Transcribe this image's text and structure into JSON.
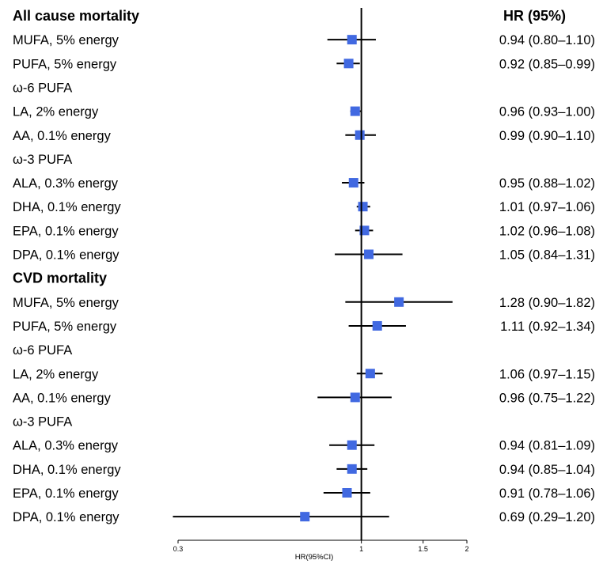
{
  "chart_data": {
    "type": "forest",
    "header_hr": "HR (95%)",
    "xlabel": "HR(95%CI)",
    "x_scale": "log",
    "xlim": [
      0.3,
      2
    ],
    "reference_line": 1,
    "x_ticks": [
      {
        "value": 0.3,
        "label": "0.3"
      },
      {
        "value": 1,
        "label": "1"
      },
      {
        "value": 1.5,
        "label": "1.5"
      },
      {
        "value": 2,
        "label": "2"
      }
    ],
    "marker_color": "#4169E1",
    "rows": [
      {
        "kind": "header",
        "label": "All cause mortality"
      },
      {
        "kind": "data",
        "label": "MUFA, 5% energy",
        "hr": 0.94,
        "lo": 0.8,
        "hi": 1.1,
        "text": "0.94 (0.80–1.10)"
      },
      {
        "kind": "data",
        "label": "PUFA, 5% energy",
        "hr": 0.92,
        "lo": 0.85,
        "hi": 0.99,
        "text": "0.92 (0.85–0.99)"
      },
      {
        "kind": "sub",
        "label": "ω-6 PUFA"
      },
      {
        "kind": "data",
        "label": "LA, 2% energy",
        "hr": 0.96,
        "lo": 0.93,
        "hi": 1.0,
        "text": "0.96 (0.93–1.00)"
      },
      {
        "kind": "data",
        "label": "AA, 0.1% energy",
        "hr": 0.99,
        "lo": 0.9,
        "hi": 1.1,
        "text": "0.99 (0.90–1.10)"
      },
      {
        "kind": "sub",
        "label": "ω-3 PUFA"
      },
      {
        "kind": "data",
        "label": "ALA, 0.3% energy",
        "hr": 0.95,
        "lo": 0.88,
        "hi": 1.02,
        "text": "0.95 (0.88–1.02)"
      },
      {
        "kind": "data",
        "label": "DHA, 0.1% energy",
        "hr": 1.01,
        "lo": 0.97,
        "hi": 1.06,
        "text": "1.01 (0.97–1.06)"
      },
      {
        "kind": "data",
        "label": "EPA, 0.1% energy",
        "hr": 1.02,
        "lo": 0.96,
        "hi": 1.08,
        "text": "1.02 (0.96–1.08)"
      },
      {
        "kind": "data",
        "label": "DPA, 0.1% energy",
        "hr": 1.05,
        "lo": 0.84,
        "hi": 1.31,
        "text": "1.05 (0.84–1.31)"
      },
      {
        "kind": "header",
        "label": "CVD mortality"
      },
      {
        "kind": "data",
        "label": "MUFA, 5% energy",
        "hr": 1.28,
        "lo": 0.9,
        "hi": 1.82,
        "text": "1.28 (0.90–1.82)"
      },
      {
        "kind": "data",
        "label": "PUFA, 5% energy",
        "hr": 1.11,
        "lo": 0.92,
        "hi": 1.34,
        "text": "1.11 (0.92–1.34)"
      },
      {
        "kind": "sub",
        "label": "ω-6 PUFA"
      },
      {
        "kind": "data",
        "label": "LA, 2% energy",
        "hr": 1.06,
        "lo": 0.97,
        "hi": 1.15,
        "text": "1.06 (0.97–1.15)"
      },
      {
        "kind": "data",
        "label": "AA, 0.1% energy",
        "hr": 0.96,
        "lo": 0.75,
        "hi": 1.22,
        "text": "0.96 (0.75–1.22)"
      },
      {
        "kind": "sub",
        "label": "ω-3 PUFA"
      },
      {
        "kind": "data",
        "label": "ALA, 0.3% energy",
        "hr": 0.94,
        "lo": 0.81,
        "hi": 1.09,
        "text": "0.94 (0.81–1.09)"
      },
      {
        "kind": "data",
        "label": "DHA, 0.1% energy",
        "hr": 0.94,
        "lo": 0.85,
        "hi": 1.04,
        "text": "0.94 (0.85–1.04)"
      },
      {
        "kind": "data",
        "label": "EPA, 0.1% energy",
        "hr": 0.91,
        "lo": 0.78,
        "hi": 1.06,
        "text": "0.91 (0.78–1.06)"
      },
      {
        "kind": "data",
        "label": "DPA, 0.1% energy",
        "hr": 0.69,
        "lo": 0.29,
        "hi": 1.2,
        "text": "0.69 (0.29–1.20)"
      }
    ]
  }
}
